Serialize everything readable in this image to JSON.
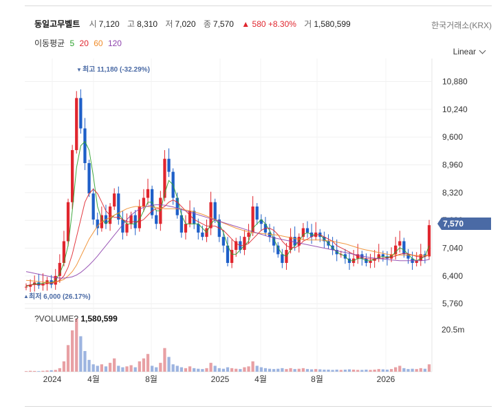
{
  "header": {
    "stock_name": "동일고무벨트",
    "open_label": "시",
    "open": "7,120",
    "high_label": "고",
    "high": "8,310",
    "low_label": "저",
    "low": "7,020",
    "close_label": "종",
    "close": "7,570",
    "change": "580",
    "change_pct": "+8.30%",
    "volume_label": "거",
    "volume": "1,580,599",
    "exchange": "한국거래소(KRX)",
    "scale_mode": "Linear"
  },
  "ma_legend": {
    "label": "이동평균",
    "items": [
      {
        "period": "5",
        "color": "#2ca02c"
      },
      {
        "period": "20",
        "color": "#e0262e"
      },
      {
        "period": "60",
        "color": "#f08c2a"
      },
      {
        "period": "120",
        "color": "#8e44ad"
      }
    ]
  },
  "annotations": {
    "high_marker": "최고 11,180 (-32.29%)",
    "low_marker": "최저 6,000 (26.17%)",
    "current_price": "7,570"
  },
  "volume_panel": {
    "title": "?VOLUME?",
    "value": "1,580,599",
    "axis_label": "20.5m"
  },
  "chart_data": {
    "type": "line",
    "title": "",
    "y_ticks": [
      "10,880",
      "10,240",
      "9,600",
      "8,960",
      "8,320",
      "7,680",
      "7,040",
      "6,400",
      "5,760"
    ],
    "x_ticks": [
      "2024",
      "4월",
      "8월",
      "2025",
      "4월",
      "8월",
      "2026"
    ],
    "ylim": [
      5700,
      11300
    ],
    "grid": true,
    "colors": {
      "up": "#e0262e",
      "down": "#1e5fc8",
      "current": "#4a6aa5"
    },
    "series": [
      {
        "name": "종가",
        "values": [
          6150,
          6200,
          6250,
          6180,
          6220,
          6300,
          6200,
          6400,
          6700,
          7200,
          8100,
          9300,
          10500,
          9800,
          9000,
          8300,
          7700,
          7500,
          7800,
          7600,
          8000,
          8300,
          7700,
          7400,
          7600,
          7800,
          7500,
          8000,
          8200,
          8400,
          7800,
          7600,
          8200,
          9100,
          8800,
          8200,
          7800,
          7400,
          7600,
          7900,
          7600,
          7400,
          7300,
          7500,
          8100,
          7700,
          7300,
          7100,
          6700,
          7000,
          7200,
          7000,
          7300,
          7400,
          8000,
          7700,
          7600,
          7400,
          7300,
          7100,
          6900,
          6700,
          7000,
          7300,
          7100,
          7300,
          7500,
          7400,
          7300,
          7400,
          7300,
          7200,
          7100,
          7000,
          6900,
          6900,
          6800,
          6700,
          6800,
          6900,
          6800,
          6700,
          6750,
          6800,
          6900,
          6850,
          6800,
          6900,
          7100,
          7200,
          6900,
          6800,
          6700,
          6750,
          6900,
          6850,
          7570
        ]
      },
      {
        "name": "5",
        "values": [
          6160,
          6190,
          6220,
          6220,
          6230,
          6260,
          6240,
          6300,
          6450,
          6700,
          7100,
          7900,
          8900,
          9400,
          9500,
          9300,
          8700,
          8000,
          7700,
          7600,
          7700,
          7800,
          7850,
          7700,
          7600,
          7600,
          7600,
          7700,
          7900,
          8100,
          8100,
          7900,
          7900,
          8300,
          8600,
          8500,
          8200,
          7800,
          7600,
          7600,
          7600,
          7600,
          7500,
          7400,
          7600,
          7700,
          7600,
          7400,
          7100,
          6900,
          6900,
          7000,
          7100,
          7200,
          7500,
          7600,
          7700,
          7600,
          7450,
          7250,
          7050,
          6900,
          6850,
          7000,
          7100,
          7200,
          7350,
          7400,
          7350,
          7350,
          7350,
          7250,
          7150,
          7050,
          6950,
          6900,
          6850,
          6750,
          6750,
          6800,
          6800,
          6750,
          6750,
          6780,
          6830,
          6850,
          6830,
          6850,
          6950,
          7050,
          7000,
          6900,
          6800,
          6750,
          6800,
          6850,
          7100
        ]
      },
      {
        "name": "20",
        "values": [
          6180,
          6190,
          6200,
          6200,
          6210,
          6220,
          6230,
          6250,
          6300,
          6400,
          6600,
          6900,
          7300,
          7700,
          8100,
          8300,
          8400,
          8300,
          8100,
          7900,
          7800,
          7750,
          7750,
          7700,
          7650,
          7650,
          7650,
          7650,
          7700,
          7800,
          7900,
          7950,
          7950,
          8000,
          8100,
          8150,
          8100,
          8000,
          7900,
          7800,
          7700,
          7650,
          7600,
          7550,
          7550,
          7550,
          7500,
          7450,
          7350,
          7250,
          7150,
          7100,
          7100,
          7150,
          7250,
          7350,
          7450,
          7500,
          7500,
          7450,
          7350,
          7200,
          7100,
          7050,
          7050,
          7100,
          7200,
          7250,
          7300,
          7350,
          7350,
          7300,
          7250,
          7200,
          7100,
          7050,
          7000,
          6950,
          6900,
          6850,
          6820,
          6800,
          6790,
          6790,
          6800,
          6810,
          6820,
          6830,
          6860,
          6900,
          6920,
          6910,
          6880,
          6850,
          6840,
          6840,
          6900
        ]
      },
      {
        "name": "60",
        "values": [
          6300,
          6290,
          6280,
          6270,
          6260,
          6250,
          6250,
          6260,
          6280,
          6320,
          6400,
          6500,
          6650,
          6850,
          7050,
          7250,
          7400,
          7550,
          7650,
          7700,
          7750,
          7800,
          7850,
          7900,
          7950,
          7980,
          8000,
          8000,
          8000,
          8000,
          7990,
          7980,
          7960,
          7950,
          7950,
          7950,
          7950,
          7940,
          7920,
          7900,
          7880,
          7850,
          7820,
          7780,
          7740,
          7700,
          7660,
          7620,
          7580,
          7540,
          7500,
          7470,
          7440,
          7420,
          7400,
          7390,
          7380,
          7370,
          7360,
          7350,
          7340,
          7320,
          7300,
          7280,
          7260,
          7250,
          7240,
          7230,
          7230,
          7230,
          7230,
          7220,
          7210,
          7200,
          7180,
          7160,
          7140,
          7110,
          7080,
          7050,
          7020,
          7000,
          6980,
          6960,
          6940,
          6920,
          6900,
          6890,
          6880,
          6880,
          6880,
          6880,
          6880,
          6870,
          6870,
          6870,
          6880
        ]
      },
      {
        "name": "120",
        "values": [
          6500,
          6480,
          6460,
          6440,
          6420,
          6400,
          6380,
          6360,
          6350,
          6350,
          6360,
          6380,
          6420,
          6480,
          6560,
          6650,
          6750,
          6860,
          6980,
          7100,
          7220,
          7340,
          7460,
          7580,
          7700,
          7800,
          7880,
          7940,
          7980,
          8010,
          8030,
          8040,
          8040,
          8030,
          8010,
          7990,
          7960,
          7930,
          7900,
          7870,
          7840,
          7810,
          7780,
          7750,
          7720,
          7690,
          7660,
          7630,
          7600,
          7570,
          7540,
          7510,
          7480,
          7450,
          7420,
          7390,
          7360,
          7330,
          7300,
          7280,
          7260,
          7240,
          7220,
          7200,
          7180,
          7160,
          7140,
          7120,
          7100,
          7080,
          7060,
          7040,
          7020,
          7000,
          6980,
          6960,
          6940,
          6920,
          6900,
          6880,
          6860,
          6840,
          6820,
          6810,
          6800,
          6790,
          6780,
          6770,
          6760,
          6750,
          6750,
          6750,
          6750,
          6750,
          6750,
          6760,
          6780
        ]
      }
    ],
    "volume": {
      "ylim": [
        0,
        20500000
      ],
      "values": [
        200000,
        300000,
        250000,
        200000,
        300000,
        400000,
        500000,
        600000,
        1200000,
        3500000,
        9000000,
        14000000,
        18000000,
        12000000,
        7000000,
        4000000,
        2500000,
        2000000,
        2500000,
        1800000,
        3000000,
        4500000,
        2000000,
        1500000,
        1800000,
        2200000,
        1500000,
        3500000,
        4500000,
        6000000,
        2000000,
        1500000,
        3000000,
        8000000,
        5000000,
        2500000,
        2000000,
        1500000,
        1200000,
        1800000,
        1200000,
        1000000,
        900000,
        1200000,
        3000000,
        2000000,
        1200000,
        1000000,
        1500000,
        1200000,
        1000000,
        900000,
        1500000,
        1800000,
        3500000,
        2000000,
        1500000,
        1200000,
        1000000,
        900000,
        1000000,
        1200000,
        900000,
        1200000,
        900000,
        1000000,
        1200000,
        900000,
        800000,
        900000,
        800000,
        700000,
        700000,
        600000,
        700000,
        600000,
        700000,
        800000,
        700000,
        600000,
        600000,
        700000,
        600000,
        700000,
        900000,
        800000,
        700000,
        900000,
        1500000,
        2000000,
        1200000,
        900000,
        1000000,
        900000,
        1200000,
        1000000,
        2500000
      ]
    }
  }
}
